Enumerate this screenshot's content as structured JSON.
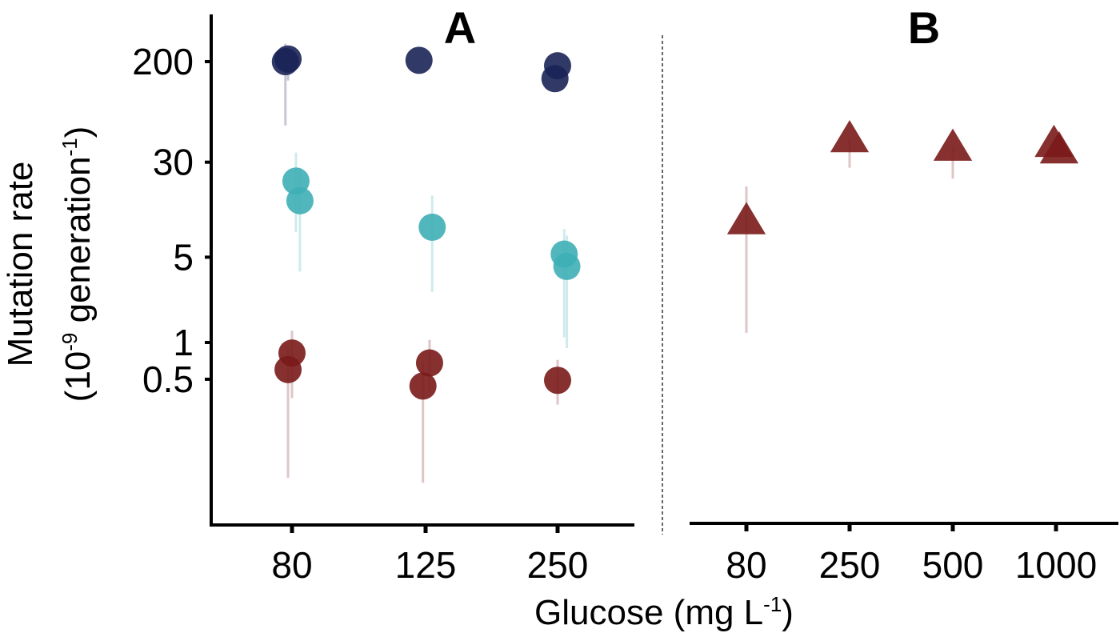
{
  "chart_data": [
    {
      "panel_label": "A",
      "type": "scatter",
      "x_type": "categorical",
      "categories": [
        "80",
        "125",
        "250"
      ],
      "y_scale": "log",
      "y_ticks": [
        {
          "value": 0.5,
          "label": "0.5"
        },
        {
          "value": 1,
          "label": "1"
        },
        {
          "value": 5,
          "label": "5"
        },
        {
          "value": 30,
          "label": "30"
        },
        {
          "value": 200,
          "label": "200"
        }
      ],
      "ylim": [
        0.03,
        600
      ],
      "series": [
        {
          "name": "dark blue",
          "color": "#1b2356",
          "marker": "circle",
          "points": [
            {
              "category": "80",
              "jitter": -0.05,
              "y": 200,
              "lo": 60,
              "hi": 280
            },
            {
              "category": "80",
              "jitter": -0.03,
              "y": 210,
              "lo": 140,
              "hi": 260
            },
            {
              "category": "125",
              "jitter": -0.05,
              "y": 205,
              "lo": 205,
              "hi": 205
            },
            {
              "category": "250",
              "jitter": -0.02,
              "y": 145,
              "lo": 145,
              "hi": 145
            },
            {
              "category": "250",
              "jitter": 0.0,
              "y": 185,
              "lo": 185,
              "hi": 185
            }
          ]
        },
        {
          "name": "teal",
          "color": "#3eafb6",
          "marker": "circle",
          "points": [
            {
              "category": "80",
              "jitter": 0.03,
              "y": 21,
              "lo": 8,
              "hi": 36
            },
            {
              "category": "80",
              "jitter": 0.06,
              "y": 14.5,
              "lo": 3.8,
              "hi": 27
            },
            {
              "category": "125",
              "jitter": 0.05,
              "y": 8.8,
              "lo": 2.6,
              "hi": 16
            },
            {
              "category": "250",
              "jitter": 0.05,
              "y": 5.3,
              "lo": 1.1,
              "hi": 8.5
            },
            {
              "category": "250",
              "jitter": 0.07,
              "y": 4.2,
              "lo": 0.9,
              "hi": 7.5
            }
          ]
        },
        {
          "name": "dark red",
          "color": "#7a1a1a",
          "marker": "circle",
          "points": [
            {
              "category": "80",
              "jitter": 0.0,
              "y": 0.82,
              "lo": 0.35,
              "hi": 1.25
            },
            {
              "category": "80",
              "jitter": -0.03,
              "y": 0.6,
              "lo": 0.078,
              "hi": 0.9
            },
            {
              "category": "125",
              "jitter": 0.03,
              "y": 0.68,
              "lo": 0.39,
              "hi": 1.05
            },
            {
              "category": "125",
              "jitter": -0.02,
              "y": 0.44,
              "lo": 0.071,
              "hi": 0.7
            },
            {
              "category": "250",
              "jitter": 0.0,
              "y": 0.49,
              "lo": 0.31,
              "hi": 0.72
            }
          ]
        }
      ]
    },
    {
      "panel_label": "B",
      "type": "scatter",
      "x_type": "categorical",
      "categories": [
        "80",
        "250",
        "500",
        "1000"
      ],
      "y_scale": "log",
      "ylim": [
        0.03,
        600
      ],
      "series": [
        {
          "name": "dark red",
          "color": "#7a1a1a",
          "marker": "triangle",
          "points": [
            {
              "category": "80",
              "jitter": 0.0,
              "y": 10,
              "lo": 1.2,
              "hi": 19
            },
            {
              "category": "250",
              "jitter": 0.0,
              "y": 47,
              "lo": 27,
              "hi": 47
            },
            {
              "category": "500",
              "jitter": 0.0,
              "y": 40,
              "lo": 22,
              "hi": 40
            },
            {
              "category": "1000",
              "jitter": -0.02,
              "y": 43,
              "lo": 43,
              "hi": 43
            },
            {
              "category": "1000",
              "jitter": 0.03,
              "y": 38,
              "lo": 38,
              "hi": 38
            }
          ]
        }
      ]
    }
  ],
  "axes": {
    "x_title_main": "Glucose (mg L",
    "x_title_sup": "-1",
    "x_title_end": ")",
    "y_title_line1": "Mutation rate",
    "y_title_line2_pre": "(10",
    "y_title_line2_sup1": "-9",
    "y_title_line2_mid": " generation",
    "y_title_line2_sup2": "-1",
    "y_title_line2_end": ")"
  }
}
